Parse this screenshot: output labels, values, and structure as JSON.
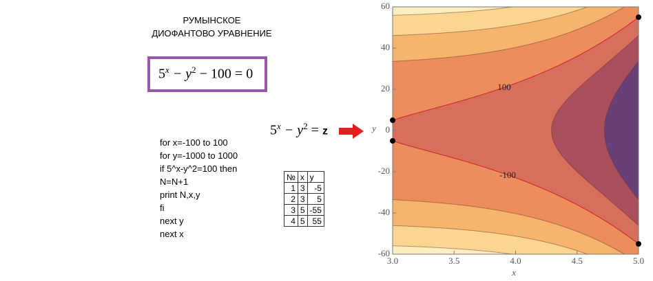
{
  "title": [
    "РУМЫНСКОЕ",
    "ДИОФАНТОВО  УРАВНЕНИЕ"
  ],
  "equation_main": [
    "5",
    "x",
    " − y",
    "2",
    " − 100 = 0"
  ],
  "equation_z": [
    "5",
    "x",
    " − y",
    "2",
    " = ",
    "z"
  ],
  "code": [
    "for x=-100 to 100",
    "for y=-1000 to 1000",
    "if 5^x-y^2=100 then",
    "N=N+1",
    "print N,x,y",
    "fi",
    "next y",
    "next x"
  ],
  "table": {
    "headers": [
      "№",
      "x",
      "y"
    ],
    "rows": [
      [
        1,
        3,
        -5
      ],
      [
        2,
        3,
        5
      ],
      [
        3,
        5,
        -55
      ],
      [
        4,
        5,
        55
      ]
    ]
  },
  "chart_data": {
    "type": "contour",
    "xlabel": "x",
    "ylabel": "y",
    "xlim": [
      3,
      5
    ],
    "ylim": [
      -60,
      60
    ],
    "xticks": [
      {
        "value": 3,
        "label": "3.0"
      },
      3.5,
      {
        "value": 4,
        "label": "4.0"
      },
      4.5,
      {
        "value": 5,
        "label": "5.0"
      }
    ],
    "yticks": [
      -60,
      -40,
      -20,
      0,
      20,
      40,
      60
    ],
    "background": "#fdeec0",
    "levels": [
      -3000,
      -2000,
      -1000,
      100,
      1000,
      2000
    ],
    "colors": [
      "#fbd690",
      "#f6b46c",
      "#ec8d5c",
      "#d6705a",
      "#a94f5e",
      "#684077"
    ],
    "contour_labels": [
      "100",
      "-100"
    ],
    "points": {
      "x": [
        3,
        3,
        5,
        5
      ],
      "y": [
        5,
        -5,
        55,
        -55
      ]
    }
  }
}
